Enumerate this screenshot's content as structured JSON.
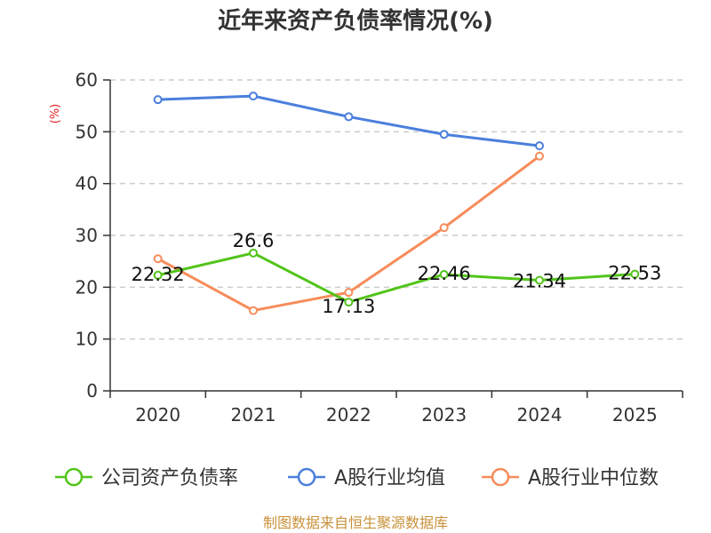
{
  "chart_data": {
    "type": "line",
    "title": "近年来资产负债率情况(%)",
    "unit_label": "(%)",
    "xlabel": "",
    "ylabel": "",
    "categories": [
      "2020",
      "2021",
      "2022",
      "2023",
      "2024",
      "2025"
    ],
    "ylim": [
      0,
      60
    ],
    "yticks": [
      0,
      10,
      20,
      30,
      40,
      50,
      60
    ],
    "grid": true,
    "legend_position": "bottom",
    "series": [
      {
        "name": "公司资产负债率",
        "color": "#52c41a",
        "values": [
          22.32,
          26.6,
          17.13,
          22.46,
          21.34,
          22.53
        ],
        "labels": [
          "22.32",
          "26.6",
          "17.13",
          "22.46",
          "21.34",
          "22.53"
        ]
      },
      {
        "name": "A股行业均值",
        "color": "#4a7fdc",
        "values": [
          56.2,
          56.9,
          52.9,
          49.5,
          47.3,
          null
        ]
      },
      {
        "name": "A股行业中位数",
        "color": "#f78c5a",
        "values": [
          25.5,
          15.5,
          19.0,
          31.5,
          45.3,
          null
        ]
      }
    ],
    "source": "制图数据来自恒生聚源数据库"
  }
}
